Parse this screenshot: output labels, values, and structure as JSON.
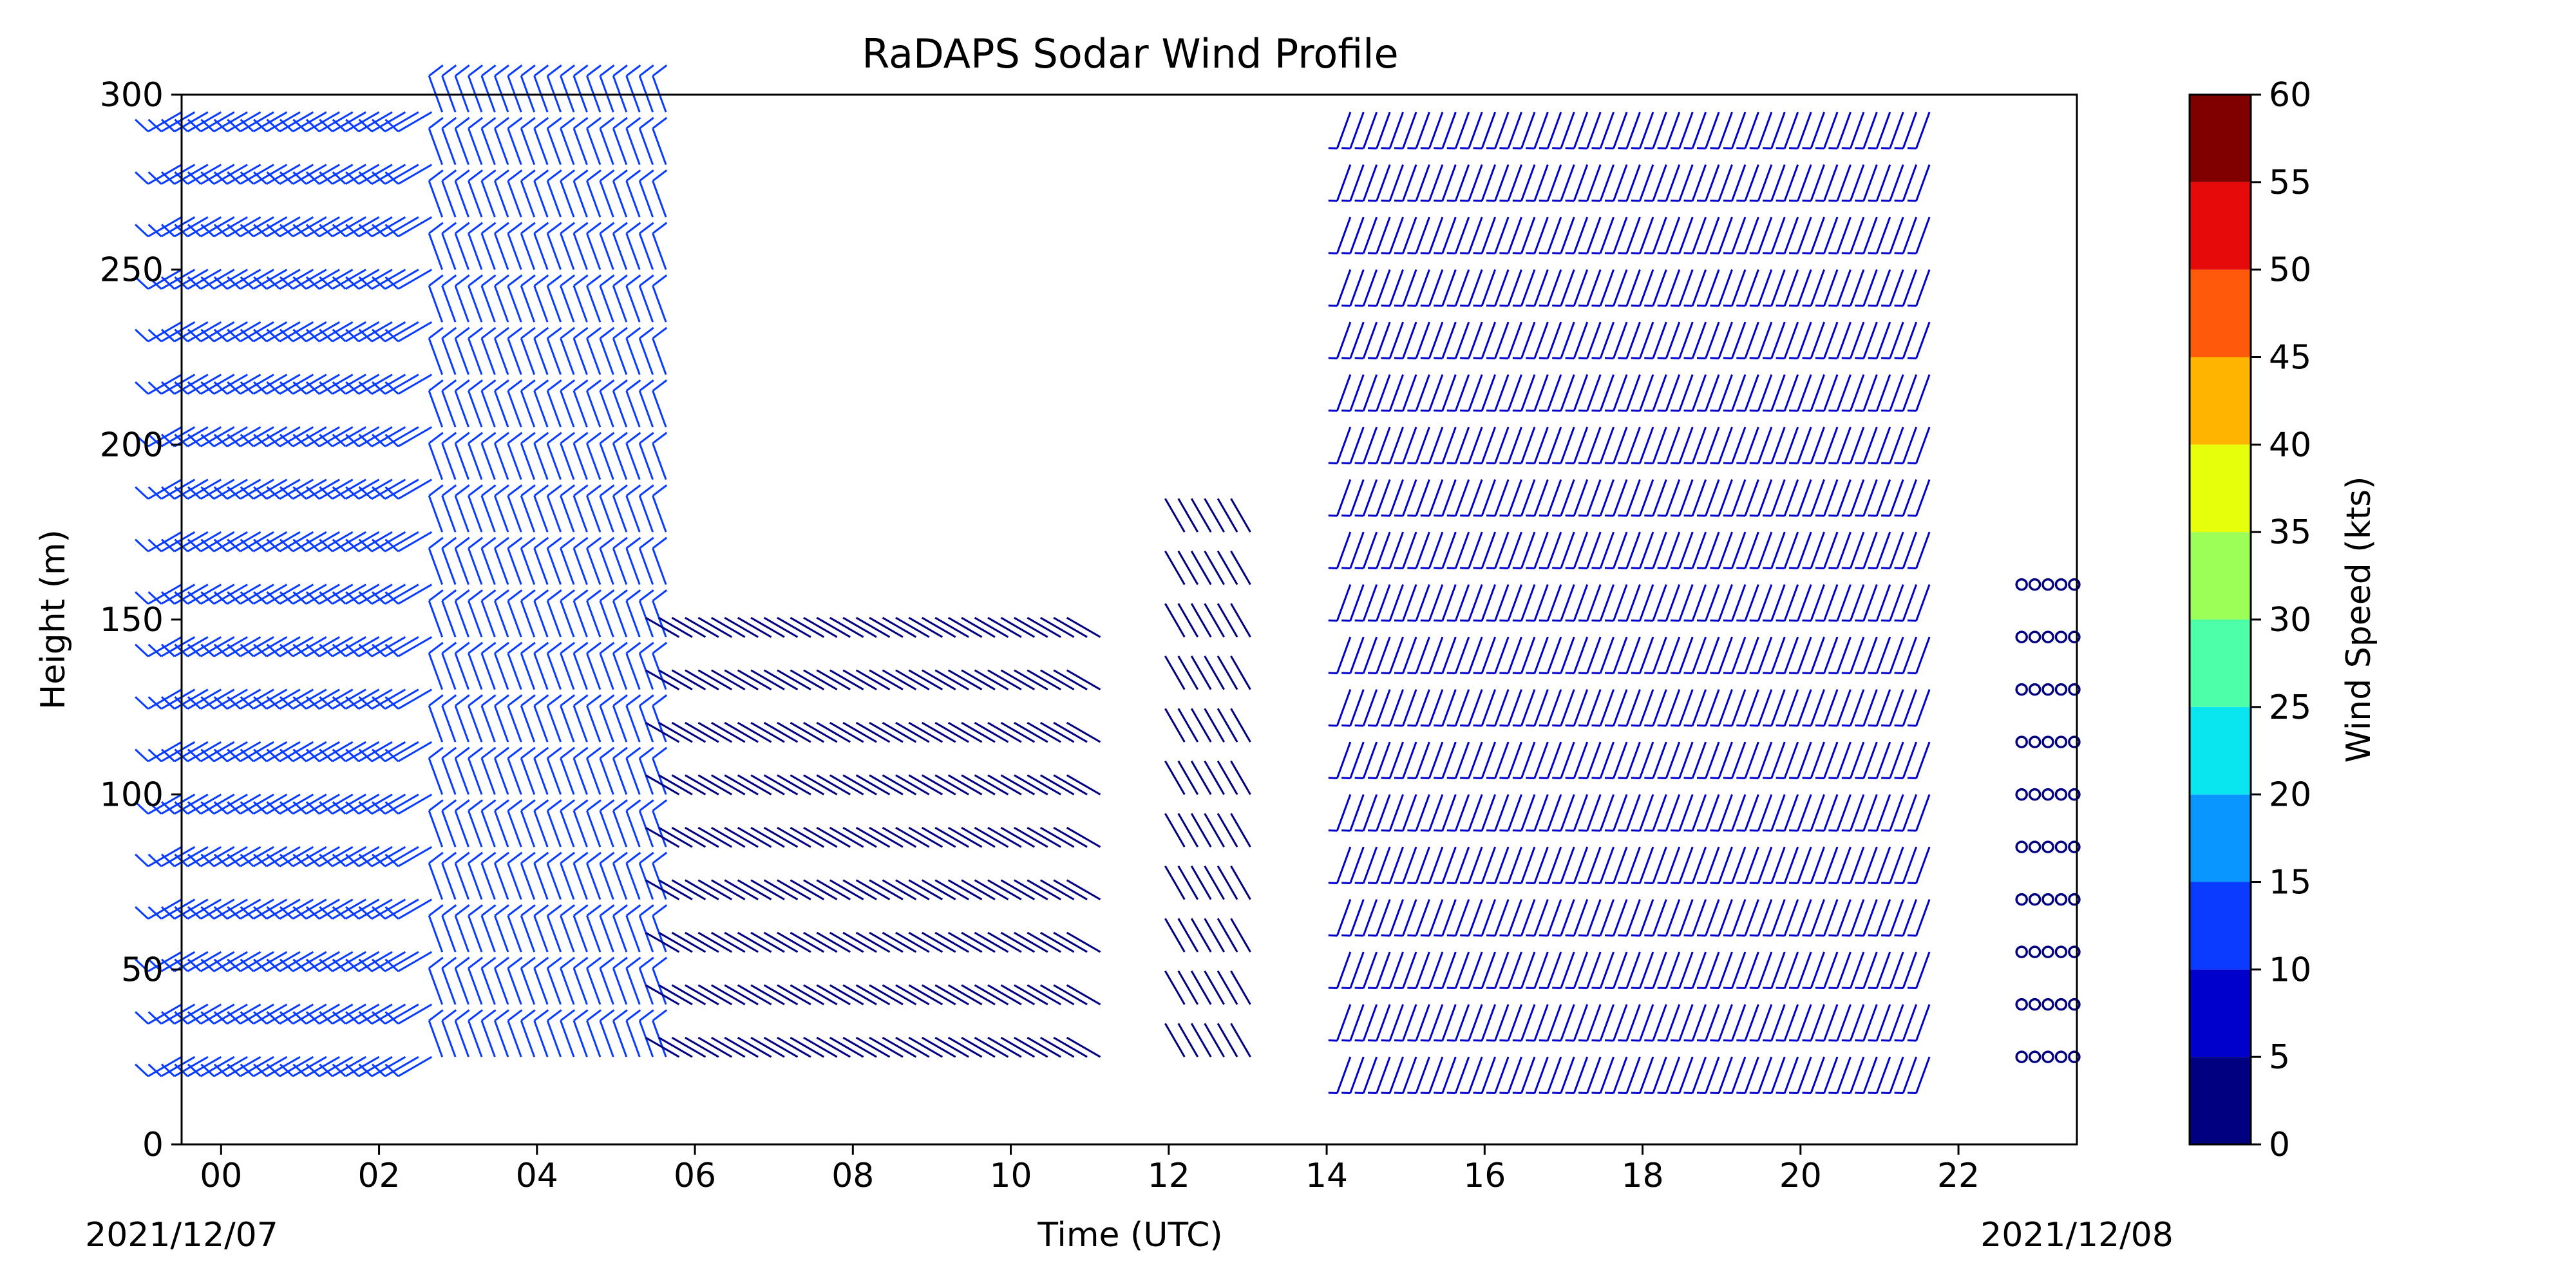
{
  "chart_data": {
    "type": "wind-barb-profile",
    "title": "RaDAPS Sodar Wind Profile",
    "xlabel": "Time (UTC)",
    "ylabel": "Height (m)",
    "colorbar_label": "Wind Speed (kts)",
    "start_date_label": "2021/12/07",
    "end_date_label": "2021/12/08",
    "xlim": [
      -0.5,
      23.5
    ],
    "ylim": [
      0,
      300
    ],
    "x_ticks": [
      0,
      2,
      4,
      6,
      8,
      10,
      12,
      14,
      16,
      18,
      20,
      22
    ],
    "x_tick_labels": [
      "00",
      "02",
      "04",
      "06",
      "08",
      "10",
      "12",
      "14",
      "16",
      "18",
      "20",
      "22"
    ],
    "y_ticks": [
      0,
      50,
      100,
      150,
      200,
      250,
      300
    ],
    "colorbar_levels": [
      0,
      5,
      10,
      15,
      20,
      25,
      30,
      35,
      40,
      45,
      50,
      55,
      60
    ],
    "colorbar_colors": [
      "#000080",
      "#0000cd",
      "#0a3cff",
      "#0a96ff",
      "#0ae6f0",
      "#4dffa8",
      "#9cff57",
      "#e6ff0a",
      "#ffb400",
      "#ff5a0a",
      "#e60a0a",
      "#800000"
    ],
    "heights": [
      25,
      40,
      55,
      70,
      85,
      100,
      115,
      130,
      145,
      160,
      175,
      190,
      205,
      220,
      235,
      250,
      265,
      280,
      295
    ],
    "time_step_minutes": 10,
    "profile_segments": [
      {
        "t_start": -0.5,
        "t_end": 2.8,
        "max_height": 295,
        "speed_kts": 10,
        "direction_deg": 240
      },
      {
        "t_start": 2.8,
        "t_end": 5.8,
        "max_height": 295,
        "speed_kts": 14,
        "direction_deg": 340
      },
      {
        "t_start": 5.8,
        "t_end": 11.2,
        "max_height": 145,
        "speed_kts": 3,
        "direction_deg": 300
      },
      {
        "t_start": 12.2,
        "t_end": 13.2,
        "max_height": 175,
        "speed_kts": 4,
        "direction_deg": 330
      },
      {
        "t_start": 14.3,
        "t_end": 21.8,
        "max_height": 295,
        "speed_kts": 8,
        "direction_deg": 200
      },
      {
        "t_start": 22.8,
        "t_end": 23.5,
        "max_height": 160,
        "speed_kts": 0,
        "direction_deg": 0
      }
    ]
  }
}
